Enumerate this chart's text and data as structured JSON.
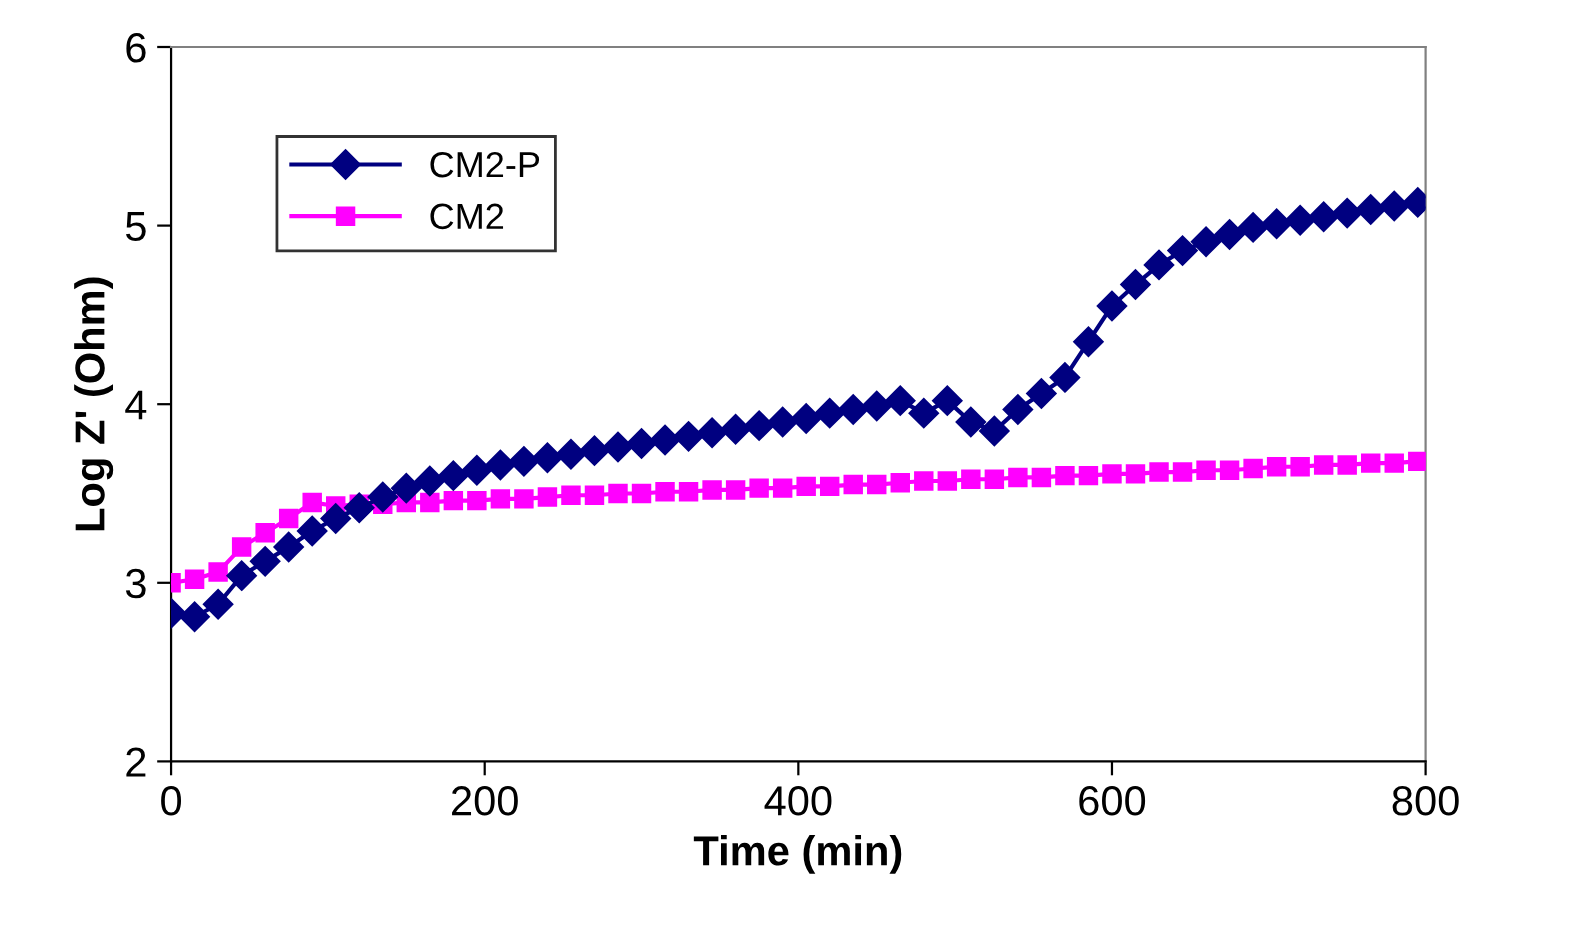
{
  "chart_data": {
    "type": "line",
    "xlabel": "Time (min)",
    "ylabel": "Log Z' (Ohm)",
    "xlim": [
      0,
      800
    ],
    "xticks": [
      0,
      200,
      400,
      600,
      800
    ],
    "ylim": [
      2,
      6
    ],
    "yticks": [
      2,
      3,
      4,
      5,
      6
    ],
    "grid": false,
    "legend": "top left",
    "x": [
      0,
      15,
      30,
      45,
      60,
      75,
      90,
      105,
      120,
      135,
      150,
      165,
      180,
      195,
      210,
      225,
      240,
      255,
      270,
      285,
      300,
      315,
      330,
      345,
      360,
      375,
      390,
      405,
      420,
      435,
      450,
      465,
      480,
      495,
      510,
      525,
      540,
      555,
      570,
      585,
      600,
      615,
      630,
      645,
      660,
      675,
      690,
      705,
      720,
      735,
      750,
      765,
      780,
      795
    ],
    "series": [
      {
        "name": "CM2-P",
        "color": "#000080",
        "marker": "diamond",
        "values": [
          2.83,
          2.81,
          2.88,
          3.04,
          3.12,
          3.2,
          3.29,
          3.36,
          3.42,
          3.48,
          3.53,
          3.57,
          3.6,
          3.63,
          3.66,
          3.68,
          3.7,
          3.72,
          3.74,
          3.76,
          3.78,
          3.8,
          3.82,
          3.84,
          3.86,
          3.88,
          3.9,
          3.92,
          3.95,
          3.97,
          3.99,
          4.02,
          3.95,
          4.02,
          3.9,
          3.85,
          3.97,
          4.06,
          4.15,
          4.35,
          4.55,
          4.67,
          4.78,
          4.86,
          4.91,
          4.95,
          4.99,
          5.01,
          5.03,
          5.05,
          5.07,
          5.09,
          5.11,
          5.13
        ]
      },
      {
        "name": "CM2",
        "color": "#ff00ff",
        "marker": "square",
        "values": [
          3.0,
          3.02,
          3.06,
          3.2,
          3.28,
          3.36,
          3.45,
          3.43,
          3.44,
          3.44,
          3.45,
          3.45,
          3.46,
          3.46,
          3.47,
          3.47,
          3.48,
          3.49,
          3.49,
          3.5,
          3.5,
          3.51,
          3.51,
          3.52,
          3.52,
          3.53,
          3.53,
          3.54,
          3.54,
          3.55,
          3.55,
          3.56,
          3.57,
          3.57,
          3.58,
          3.58,
          3.59,
          3.59,
          3.6,
          3.6,
          3.61,
          3.61,
          3.62,
          3.62,
          3.63,
          3.63,
          3.64,
          3.65,
          3.65,
          3.66,
          3.66,
          3.67,
          3.67,
          3.68
        ]
      }
    ]
  }
}
